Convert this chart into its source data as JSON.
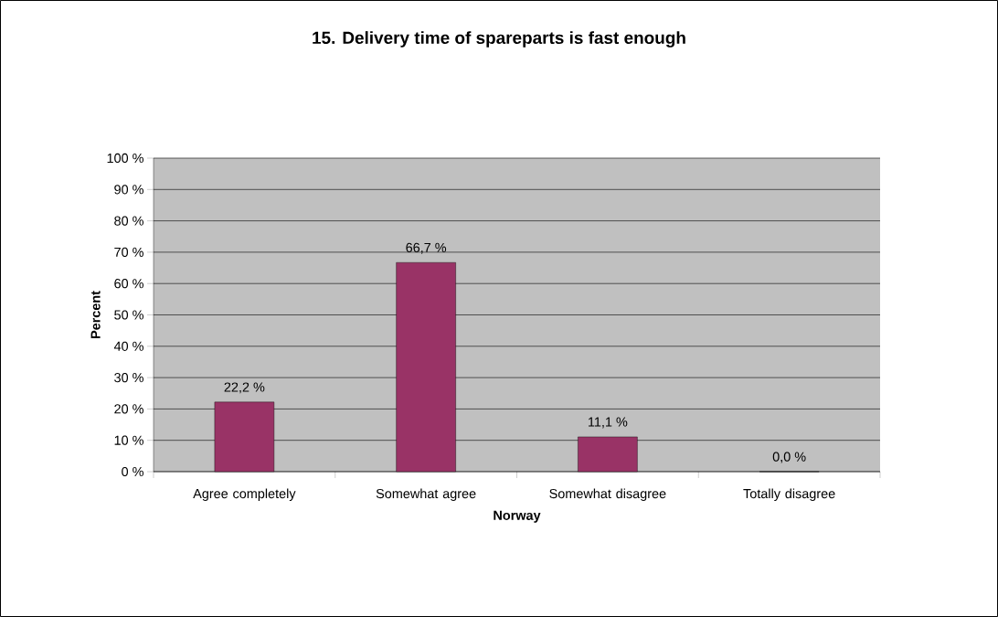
{
  "chart_data": {
    "type": "bar",
    "title": "15. Delivery time of spareparts is fast enough",
    "xlabel": "Norway",
    "ylabel": "Percent",
    "categories": [
      "Agree completely",
      "Somewhat agree",
      "Somewhat disagree",
      "Totally disagree"
    ],
    "values": [
      22.2,
      66.7,
      11.1,
      0.0
    ],
    "color": "#993366",
    "value_labels": [
      "22,2 %",
      "66,7 %",
      "11,1 %",
      "0,0 %"
    ],
    "ylim": [
      0,
      100
    ],
    "yticks": [
      {
        "value": 0,
        "label": "0 %"
      },
      {
        "value": 10,
        "label": "10 %"
      },
      {
        "value": 20,
        "label": "20 %"
      },
      {
        "value": 30,
        "label": "30 %"
      },
      {
        "value": 40,
        "label": "40 %"
      },
      {
        "value": 50,
        "label": "50 %"
      },
      {
        "value": 60,
        "label": "60 %"
      },
      {
        "value": 70,
        "label": "70 %"
      },
      {
        "value": 80,
        "label": "80 %"
      },
      {
        "value": 90,
        "label": "90 %"
      },
      {
        "value": 100,
        "label": "100 %"
      }
    ],
    "grid": "y"
  }
}
